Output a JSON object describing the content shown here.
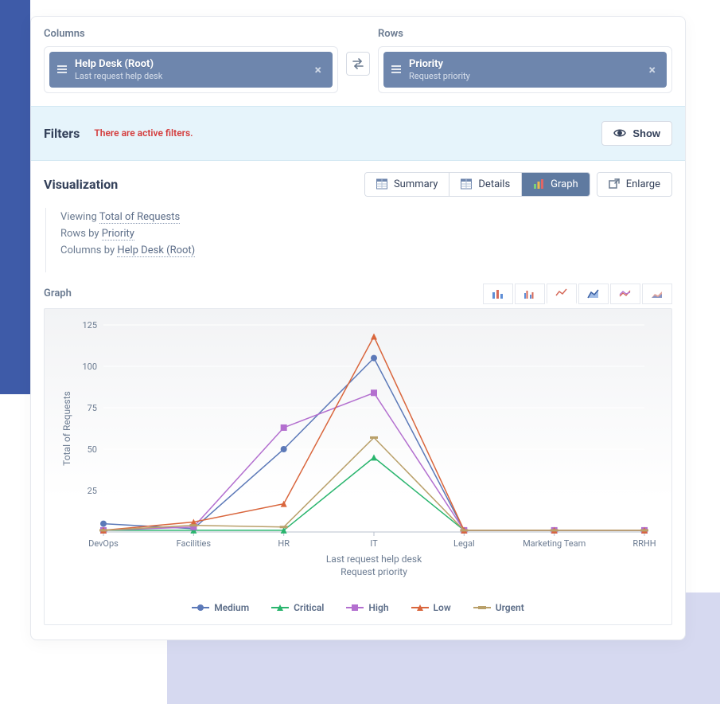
{
  "columns": {
    "label": "Columns",
    "pill": {
      "title": "Help Desk (Root)",
      "subtitle": "Last request help desk"
    }
  },
  "rows": {
    "label": "Rows",
    "pill": {
      "title": "Priority",
      "subtitle": "Request priority"
    }
  },
  "filters": {
    "label": "Filters",
    "alert": "There are active filters.",
    "show_label": "Show"
  },
  "visualization": {
    "title": "Visualization",
    "tabs": {
      "summary": "Summary",
      "details": "Details",
      "graph": "Graph",
      "enlarge": "Enlarge"
    },
    "desc": {
      "viewing_prefix": "Viewing ",
      "viewing_link": "Total of Requests",
      "rows_prefix": "Rows by ",
      "rows_link": "Priority",
      "cols_prefix": "Columns by ",
      "cols_link": "Help Desk (Root)"
    }
  },
  "graph": {
    "section_label": "Graph",
    "plot": {
      "type": "line",
      "categories": [
        "DevOps",
        "Facilities",
        "HR",
        "IT",
        "Legal",
        "Marketing Team",
        "RRHH"
      ],
      "y_label": "Total of Requests",
      "x_label_1": "Last request help desk",
      "x_label_2": "Request priority",
      "ylim": [
        0,
        125
      ],
      "yticks": [
        25,
        50,
        75,
        100,
        125
      ],
      "series": [
        {
          "name": "Medium",
          "color": "#5c79b8",
          "marker": "circle",
          "values": [
            5,
            2,
            50,
            105,
            1,
            1,
            1
          ]
        },
        {
          "name": "Critical",
          "color": "#2ab56e",
          "marker": "triangle",
          "values": [
            1,
            1,
            1,
            45,
            1,
            1,
            1
          ]
        },
        {
          "name": "High",
          "color": "#b36fcf",
          "marker": "square",
          "values": [
            1,
            3,
            63,
            84,
            1,
            1,
            1
          ]
        },
        {
          "name": "Low",
          "color": "#d9663d",
          "marker": "triangle",
          "values": [
            1,
            6,
            17,
            118,
            1,
            1,
            1
          ]
        },
        {
          "name": "Urgent",
          "color": "#b9a06a",
          "marker": "hline",
          "values": [
            1,
            4,
            3,
            57,
            1,
            1,
            1
          ]
        }
      ],
      "background_gradient_top": "#f2f3f5",
      "background_gradient_bottom": "#ffffff",
      "grid_color": "#ffffff",
      "baseline_color": "#b8c0ce",
      "label_fontsize": 11,
      "line_width": 1.5,
      "marker_size": 4
    }
  }
}
